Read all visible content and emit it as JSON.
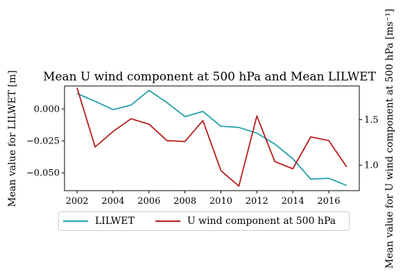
{
  "chart_data": {
    "type": "line",
    "title": "Mean U wind component at 500 hPa and Mean LILWET",
    "x": [
      2002,
      2003,
      2004,
      2005,
      2006,
      2007,
      2008,
      2009,
      2010,
      2011,
      2012,
      2013,
      2014,
      2015,
      2016,
      2017
    ],
    "xlim": [
      2001.3,
      2017.7
    ],
    "xticks": [
      2002,
      2004,
      2006,
      2008,
      2010,
      2012,
      2014,
      2016
    ],
    "series": [
      {
        "name": "LILWET",
        "axis": "left",
        "color": "#22a0a8",
        "values": [
          0.012,
          0.006,
          -0.0005,
          0.003,
          0.0145,
          0.005,
          -0.006,
          -0.002,
          -0.0135,
          -0.0145,
          -0.019,
          -0.0275,
          -0.039,
          -0.055,
          -0.0543,
          -0.06
        ]
      },
      {
        "name": "U wind component at 500 hPa",
        "axis": "right",
        "color": "#b81c1c",
        "values": [
          1.85,
          1.2,
          1.37,
          1.51,
          1.45,
          1.27,
          1.26,
          1.49,
          0.94,
          0.77,
          1.54,
          1.04,
          0.96,
          1.31,
          1.27,
          0.98
        ]
      }
    ],
    "left_axis": {
      "label": "Mean value for LILWET [m]",
      "ylim": [
        -0.064,
        0.018
      ],
      "ticks": [
        0.0,
        -0.025,
        -0.05
      ],
      "tick_labels": [
        "0.000",
        "−0.025",
        "−0.050"
      ]
    },
    "right_axis": {
      "label": "Mean value for U wind component at 500 hPa [ms⁻¹]",
      "ylim": [
        0.72,
        1.87
      ],
      "ticks": [
        1.0,
        1.5
      ],
      "tick_labels": [
        "1.0",
        "1.5"
      ]
    },
    "grid": false,
    "legend_position": "bottom"
  }
}
